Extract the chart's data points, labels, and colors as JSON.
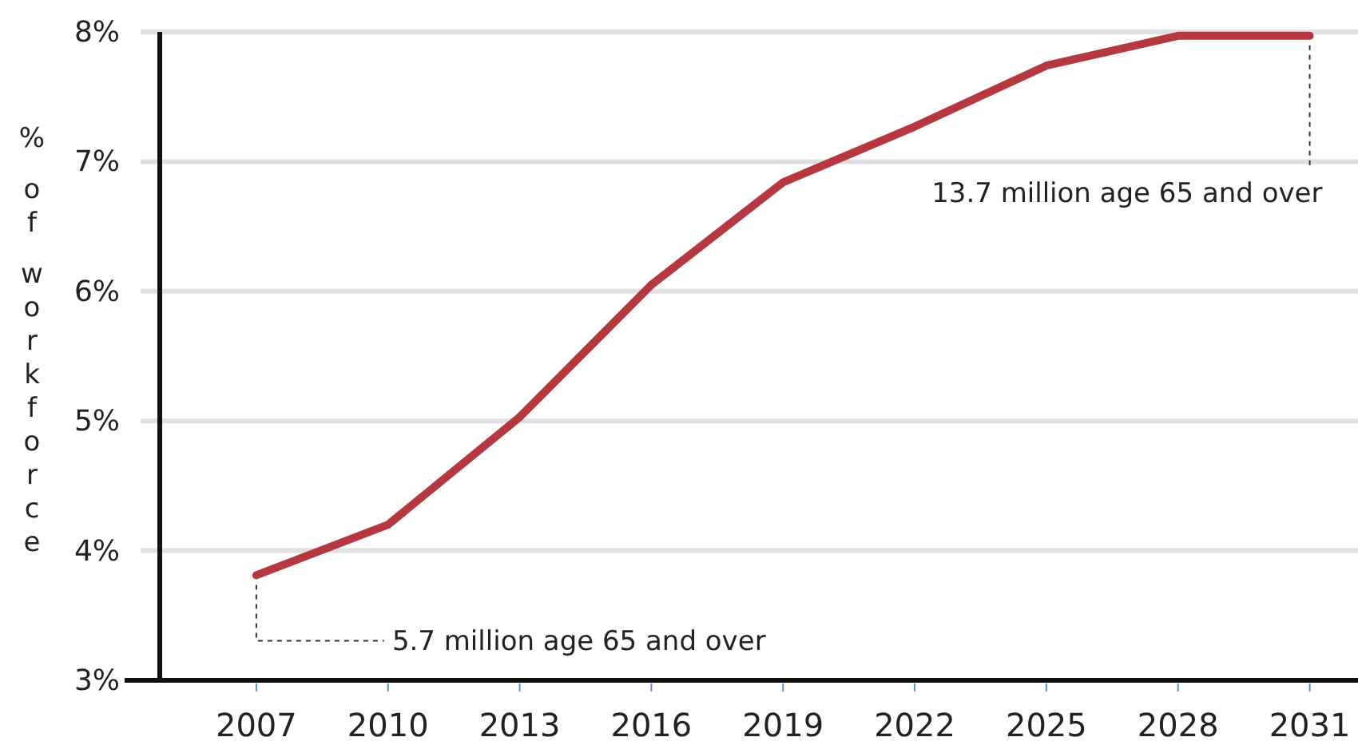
{
  "chart_data": {
    "type": "line",
    "ylabel": "% of workforce",
    "x": [
      2007,
      2010,
      2013,
      2016,
      2019,
      2022,
      2025,
      2028,
      2031
    ],
    "series": [
      {
        "color": "#b5373f",
        "values": [
          3.81,
          4.2,
          5.03,
          6.05,
          6.84,
          7.27,
          7.74,
          7.97,
          7.97
        ]
      }
    ],
    "xlim": [
      2004.8,
      2032.1
    ],
    "xticks": [
      2007,
      2010,
      2013,
      2016,
      2019,
      2022,
      2025,
      2028,
      2031
    ],
    "ylim": [
      3,
      8
    ],
    "yticks": [
      {
        "value": 3,
        "label": "3%"
      },
      {
        "value": 4,
        "label": "4%"
      },
      {
        "value": 5,
        "label": "5%"
      },
      {
        "value": 6,
        "label": "6%"
      },
      {
        "value": 7,
        "label": "7%"
      },
      {
        "value": 8,
        "label": "8%"
      }
    ],
    "grid": "y",
    "marker": "none",
    "line_style": "solid",
    "annotations": [
      {
        "text": "5.7 million age 65 and over",
        "x": 2007,
        "y": 3.81
      },
      {
        "text": "13.7 million age 65 and over",
        "x": 2031,
        "y": 7.97
      }
    ]
  }
}
